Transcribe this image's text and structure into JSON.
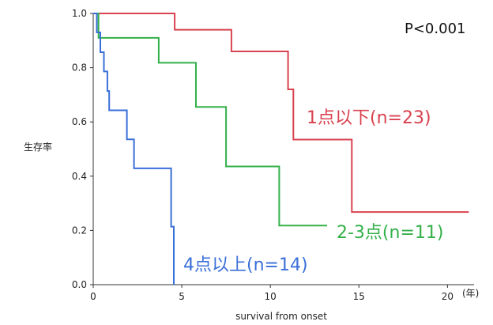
{
  "chart_data": {
    "type": "line",
    "title": "",
    "xlabel": "survival from onset",
    "xunit": "(年)",
    "ylabel": "生存率",
    "annotation": "P<0.001",
    "xlim": [
      0,
      21.5
    ],
    "ylim": [
      0,
      1.0
    ],
    "xticks": [
      0,
      5,
      10,
      15,
      20
    ],
    "yticks": [
      "0.0",
      "0.2",
      "0.4",
      "0.6",
      "0.8",
      "1.0"
    ],
    "grid": false,
    "series": [
      {
        "name": "1点以下(n=23)",
        "color": "#d9424f",
        "points": [
          [
            0,
            1.0
          ],
          [
            4.6,
            1.0
          ],
          [
            4.6,
            0.94
          ],
          [
            7.8,
            0.94
          ],
          [
            7.8,
            0.86
          ],
          [
            11.0,
            0.86
          ],
          [
            11.0,
            0.72
          ],
          [
            11.3,
            0.72
          ],
          [
            11.3,
            0.535
          ],
          [
            14.6,
            0.535
          ],
          [
            14.6,
            0.268
          ],
          [
            21.2,
            0.268
          ]
        ]
      },
      {
        "name": "2-3点(n=11)",
        "color": "#33b04a",
        "points": [
          [
            0,
            1.0
          ],
          [
            0.3,
            1.0
          ],
          [
            0.3,
            0.91
          ],
          [
            3.7,
            0.91
          ],
          [
            3.7,
            0.818
          ],
          [
            5.8,
            0.818
          ],
          [
            5.8,
            0.655
          ],
          [
            7.5,
            0.655
          ],
          [
            7.5,
            0.436
          ],
          [
            10.5,
            0.436
          ],
          [
            10.5,
            0.218
          ],
          [
            13.2,
            0.218
          ]
        ]
      },
      {
        "name": "4点以上(n=14)",
        "color": "#3a6fd8",
        "points": [
          [
            0,
            1.0
          ],
          [
            0.2,
            1.0
          ],
          [
            0.2,
            0.93
          ],
          [
            0.4,
            0.93
          ],
          [
            0.4,
            0.857
          ],
          [
            0.6,
            0.857
          ],
          [
            0.6,
            0.786
          ],
          [
            0.8,
            0.786
          ],
          [
            0.8,
            0.714
          ],
          [
            0.9,
            0.714
          ],
          [
            0.9,
            0.643
          ],
          [
            1.9,
            0.643
          ],
          [
            1.9,
            0.536
          ],
          [
            2.3,
            0.536
          ],
          [
            2.3,
            0.429
          ],
          [
            4.4,
            0.429
          ],
          [
            4.4,
            0.214
          ],
          [
            4.55,
            0.214
          ],
          [
            4.55,
            0.0
          ]
        ]
      }
    ]
  }
}
